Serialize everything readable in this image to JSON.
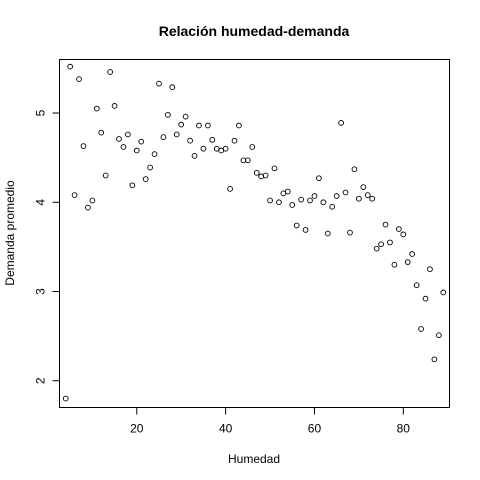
{
  "chart_data": {
    "type": "scatter",
    "title": "Relación humedad-demanda",
    "xlabel": "Humedad",
    "ylabel": "Demanda promedio",
    "xlim": [
      2.6,
      90.4
    ],
    "ylim": [
      1.7,
      5.6
    ],
    "x_ticks": [
      20,
      40,
      60,
      80
    ],
    "y_ticks": [
      2,
      3,
      4,
      5
    ],
    "grid": false,
    "legend": "none",
    "point_color": "#000000",
    "points": [
      {
        "x": 4,
        "y": 1.8
      },
      {
        "x": 5,
        "y": 5.52
      },
      {
        "x": 6,
        "y": 4.08
      },
      {
        "x": 7,
        "y": 5.38
      },
      {
        "x": 8,
        "y": 4.63
      },
      {
        "x": 9,
        "y": 3.94
      },
      {
        "x": 10,
        "y": 4.02
      },
      {
        "x": 11,
        "y": 5.05
      },
      {
        "x": 12,
        "y": 4.78
      },
      {
        "x": 13,
        "y": 4.3
      },
      {
        "x": 14,
        "y": 5.46
      },
      {
        "x": 15,
        "y": 5.08
      },
      {
        "x": 16,
        "y": 4.71
      },
      {
        "x": 17,
        "y": 4.62
      },
      {
        "x": 18,
        "y": 4.76
      },
      {
        "x": 19,
        "y": 4.19
      },
      {
        "x": 20,
        "y": 4.58
      },
      {
        "x": 21,
        "y": 4.68
      },
      {
        "x": 22,
        "y": 4.26
      },
      {
        "x": 23,
        "y": 4.39
      },
      {
        "x": 24,
        "y": 4.54
      },
      {
        "x": 25,
        "y": 5.33
      },
      {
        "x": 26,
        "y": 4.73
      },
      {
        "x": 27,
        "y": 4.98
      },
      {
        "x": 28,
        "y": 5.29
      },
      {
        "x": 29,
        "y": 4.76
      },
      {
        "x": 30,
        "y": 4.87
      },
      {
        "x": 31,
        "y": 4.96
      },
      {
        "x": 32,
        "y": 4.69
      },
      {
        "x": 33,
        "y": 4.52
      },
      {
        "x": 34,
        "y": 4.86
      },
      {
        "x": 35,
        "y": 4.6
      },
      {
        "x": 36,
        "y": 4.86
      },
      {
        "x": 37,
        "y": 4.7
      },
      {
        "x": 38,
        "y": 4.6
      },
      {
        "x": 39,
        "y": 4.58
      },
      {
        "x": 40,
        "y": 4.6
      },
      {
        "x": 41,
        "y": 4.15
      },
      {
        "x": 42,
        "y": 4.69
      },
      {
        "x": 43,
        "y": 4.86
      },
      {
        "x": 44,
        "y": 4.47
      },
      {
        "x": 45,
        "y": 4.47
      },
      {
        "x": 46,
        "y": 4.62
      },
      {
        "x": 47,
        "y": 4.33
      },
      {
        "x": 48,
        "y": 4.29
      },
      {
        "x": 49,
        "y": 4.3
      },
      {
        "x": 50,
        "y": 4.02
      },
      {
        "x": 51,
        "y": 4.38
      },
      {
        "x": 52,
        "y": 4.0
      },
      {
        "x": 53,
        "y": 4.1
      },
      {
        "x": 54,
        "y": 4.12
      },
      {
        "x": 55,
        "y": 3.97
      },
      {
        "x": 56,
        "y": 3.74
      },
      {
        "x": 57,
        "y": 4.03
      },
      {
        "x": 58,
        "y": 3.69
      },
      {
        "x": 59,
        "y": 4.02
      },
      {
        "x": 60,
        "y": 4.07
      },
      {
        "x": 61,
        "y": 4.27
      },
      {
        "x": 62,
        "y": 4.0
      },
      {
        "x": 63,
        "y": 3.65
      },
      {
        "x": 64,
        "y": 3.95
      },
      {
        "x": 65,
        "y": 4.07
      },
      {
        "x": 66,
        "y": 4.89
      },
      {
        "x": 67,
        "y": 4.11
      },
      {
        "x": 68,
        "y": 3.66
      },
      {
        "x": 69,
        "y": 4.37
      },
      {
        "x": 70,
        "y": 4.04
      },
      {
        "x": 71,
        "y": 4.17
      },
      {
        "x": 72,
        "y": 4.08
      },
      {
        "x": 73,
        "y": 4.04
      },
      {
        "x": 74,
        "y": 3.48
      },
      {
        "x": 75,
        "y": 3.53
      },
      {
        "x": 76,
        "y": 3.75
      },
      {
        "x": 77,
        "y": 3.55
      },
      {
        "x": 78,
        "y": 3.3
      },
      {
        "x": 79,
        "y": 3.7
      },
      {
        "x": 80,
        "y": 3.64
      },
      {
        "x": 81,
        "y": 3.33
      },
      {
        "x": 82,
        "y": 3.42
      },
      {
        "x": 83,
        "y": 3.07
      },
      {
        "x": 84,
        "y": 2.58
      },
      {
        "x": 85,
        "y": 2.92
      },
      {
        "x": 86,
        "y": 3.25
      },
      {
        "x": 87,
        "y": 2.24
      },
      {
        "x": 88,
        "y": 2.51
      },
      {
        "x": 89,
        "y": 2.99
      }
    ]
  }
}
